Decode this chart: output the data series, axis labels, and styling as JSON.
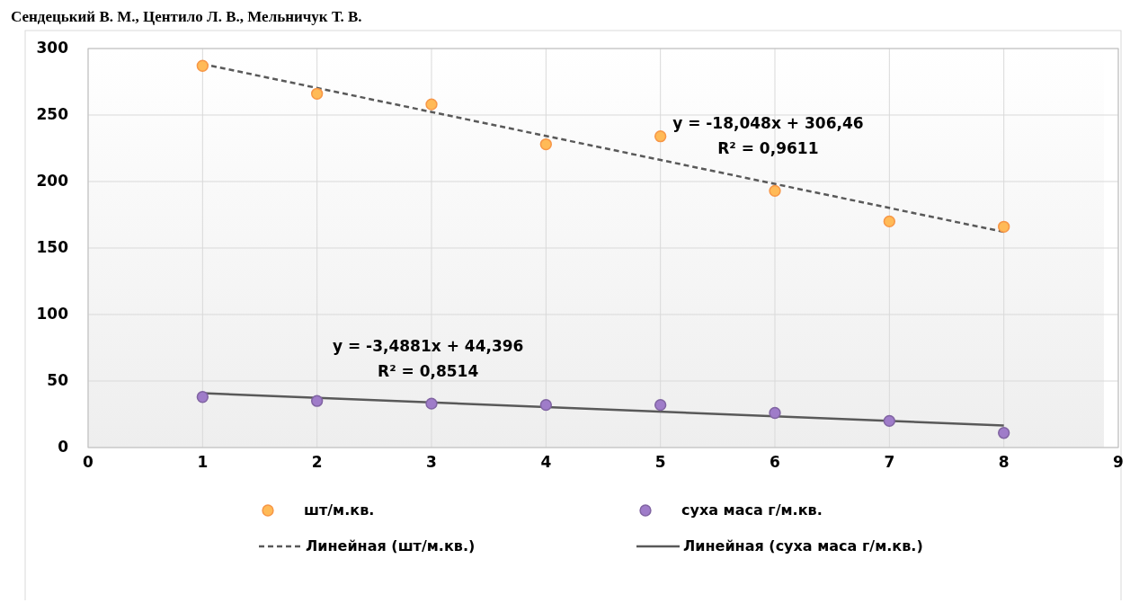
{
  "chart_data": {
    "type": "scatter",
    "title": "Сендецький В. М., Центило Л. В., Мельничук Т. В.",
    "xlim": [
      0,
      9
    ],
    "xticks": [
      0,
      1,
      2,
      3,
      4,
      5,
      6,
      7,
      8,
      9
    ],
    "ylim": [
      0,
      300
    ],
    "yticks": [
      0,
      50,
      100,
      150,
      200,
      250,
      300
    ],
    "grid": true,
    "legend": "bottom",
    "series": [
      {
        "name": "шт/м.кв.",
        "marker": "circle",
        "color": "#f79646",
        "x": [
          1,
          2,
          3,
          4,
          5,
          6,
          7,
          8
        ],
        "values": [
          287,
          266,
          258,
          228,
          234,
          193,
          170,
          166
        ]
      },
      {
        "name": "суха маса  г/м.кв.",
        "marker": "circle",
        "color": "#8064a2",
        "x": [
          1,
          2,
          3,
          4,
          5,
          6,
          7,
          8
        ],
        "values": [
          38,
          35,
          33,
          32,
          32,
          26,
          20,
          11
        ]
      },
      {
        "name": "Линейная (шт/м.кв.)",
        "type": "line",
        "marker": "none",
        "color": "#595959",
        "line_style": "dashed",
        "x": [
          1,
          8
        ],
        "values": [
          288.4,
          162.1
        ]
      },
      {
        "name": "Линейная (суха маса  г/м.кв.)",
        "type": "line",
        "marker": "none",
        "color": "#595959",
        "line_style": "solid",
        "x": [
          1,
          8
        ],
        "values": [
          40.9,
          16.5
        ]
      }
    ],
    "annotations": [
      "y = -18,048x + 306,46\nR² = 0,9611",
      "y = -3,4881x + 44,396\nR² = 0,8514"
    ]
  }
}
